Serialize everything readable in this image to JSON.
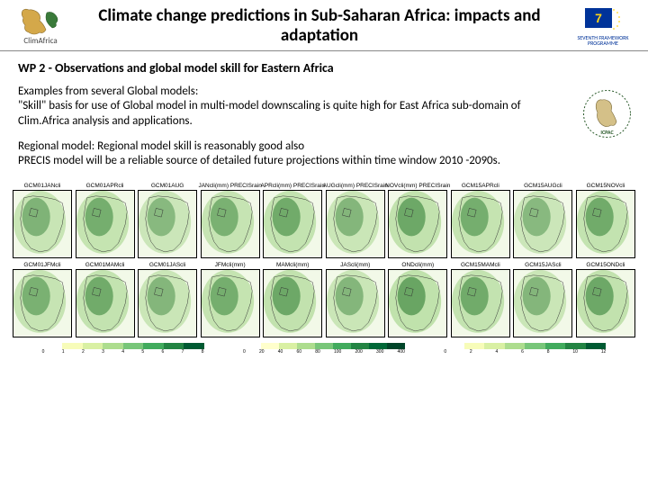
{
  "header": {
    "logo_left_text": "ClimAfrica",
    "title": "Climate change predictions in Sub-Saharan Africa: impacts and adaptation",
    "logo_right_text": "SEVENTH FRAMEWORK PROGRAMME"
  },
  "subtitle": "WP 2 - Observations and global model skill for Eastern Africa",
  "para1": "Examples from several Global models:\n\"Skill\" basis for use of Global model in multi-model downscaling is quite high for East Africa sub-domain of Clim.Africa analysis and applications.",
  "para2": "Regional model: Regional model skill is reasonably good  also\nPRECIS model will be a reliable source of detailed future projections within time window 2010 -2090s.",
  "side_logo_label": "ICPAC",
  "maps": {
    "row1": [
      {
        "title": "GCM01JANcli",
        "shade": 0.35
      },
      {
        "title": "GCM01APRcli",
        "shade": 0.45
      },
      {
        "title": "GCM01AUG",
        "shade": 0.25
      },
      {
        "title": "JANcli(mm) PRECISrain",
        "shade": 0.4
      },
      {
        "title": "APRcli(mm) PRECISrain",
        "shade": 0.5
      },
      {
        "title": "AUGcli(mm) PRECISrain",
        "shade": 0.3
      },
      {
        "title": "NOVcli(mm) PRECISrain",
        "shade": 0.55
      },
      {
        "title": "GCM15APRcli",
        "shade": 0.45
      },
      {
        "title": "GCM15AUGcli",
        "shade": 0.25
      },
      {
        "title": "GCM15NOVcli",
        "shade": 0.5
      }
    ],
    "row2": [
      {
        "title": "GCM01JFMcli",
        "shade": 0.4
      },
      {
        "title": "GCM01MAMcli",
        "shade": 0.5
      },
      {
        "title": "GCM01JAScli",
        "shade": 0.3
      },
      {
        "title": "JFMcli(mm)",
        "shade": 0.45
      },
      {
        "title": "MAMcli(mm)",
        "shade": 0.55
      },
      {
        "title": "JAScli(mm)",
        "shade": 0.3
      },
      {
        "title": "ONDcli(mm)",
        "shade": 0.6
      },
      {
        "title": "GCM15MAMcli",
        "shade": 0.5
      },
      {
        "title": "GCM15JAScli",
        "shade": 0.3
      },
      {
        "title": "GCM15ONDcli",
        "shade": 0.55
      }
    ]
  },
  "colorbars": {
    "left": {
      "colors": [
        "#ffffff",
        "#f7fcb9",
        "#d9f0a3",
        "#addd8e",
        "#78c679",
        "#41ab5d",
        "#238443",
        "#005a32"
      ],
      "ticks": [
        "0",
        "1",
        "2",
        "3",
        "4",
        "5",
        "6",
        "7",
        "8"
      ]
    },
    "mid": {
      "colors": [
        "#ffffff",
        "#ffffcc",
        "#d9f0a3",
        "#addd8e",
        "#78c679",
        "#41ab5d",
        "#238443",
        "#006837",
        "#004529"
      ],
      "ticks": [
        "0",
        "20",
        "40",
        "60",
        "80",
        "100",
        "200",
        "300",
        "400"
      ]
    },
    "right": {
      "colors": [
        "#ffffff",
        "#f7fcb9",
        "#d9f0a3",
        "#addd8e",
        "#78c679",
        "#41ab5d",
        "#238443",
        "#005a32"
      ],
      "ticks": [
        "0",
        "2",
        "4",
        "6",
        "8",
        "10",
        "12"
      ]
    }
  },
  "map_palette": {
    "light": "#f2f9e8",
    "mid": "#a4d48a",
    "dark": "#2e7d32",
    "border": "#000000",
    "outline": "#333333"
  }
}
